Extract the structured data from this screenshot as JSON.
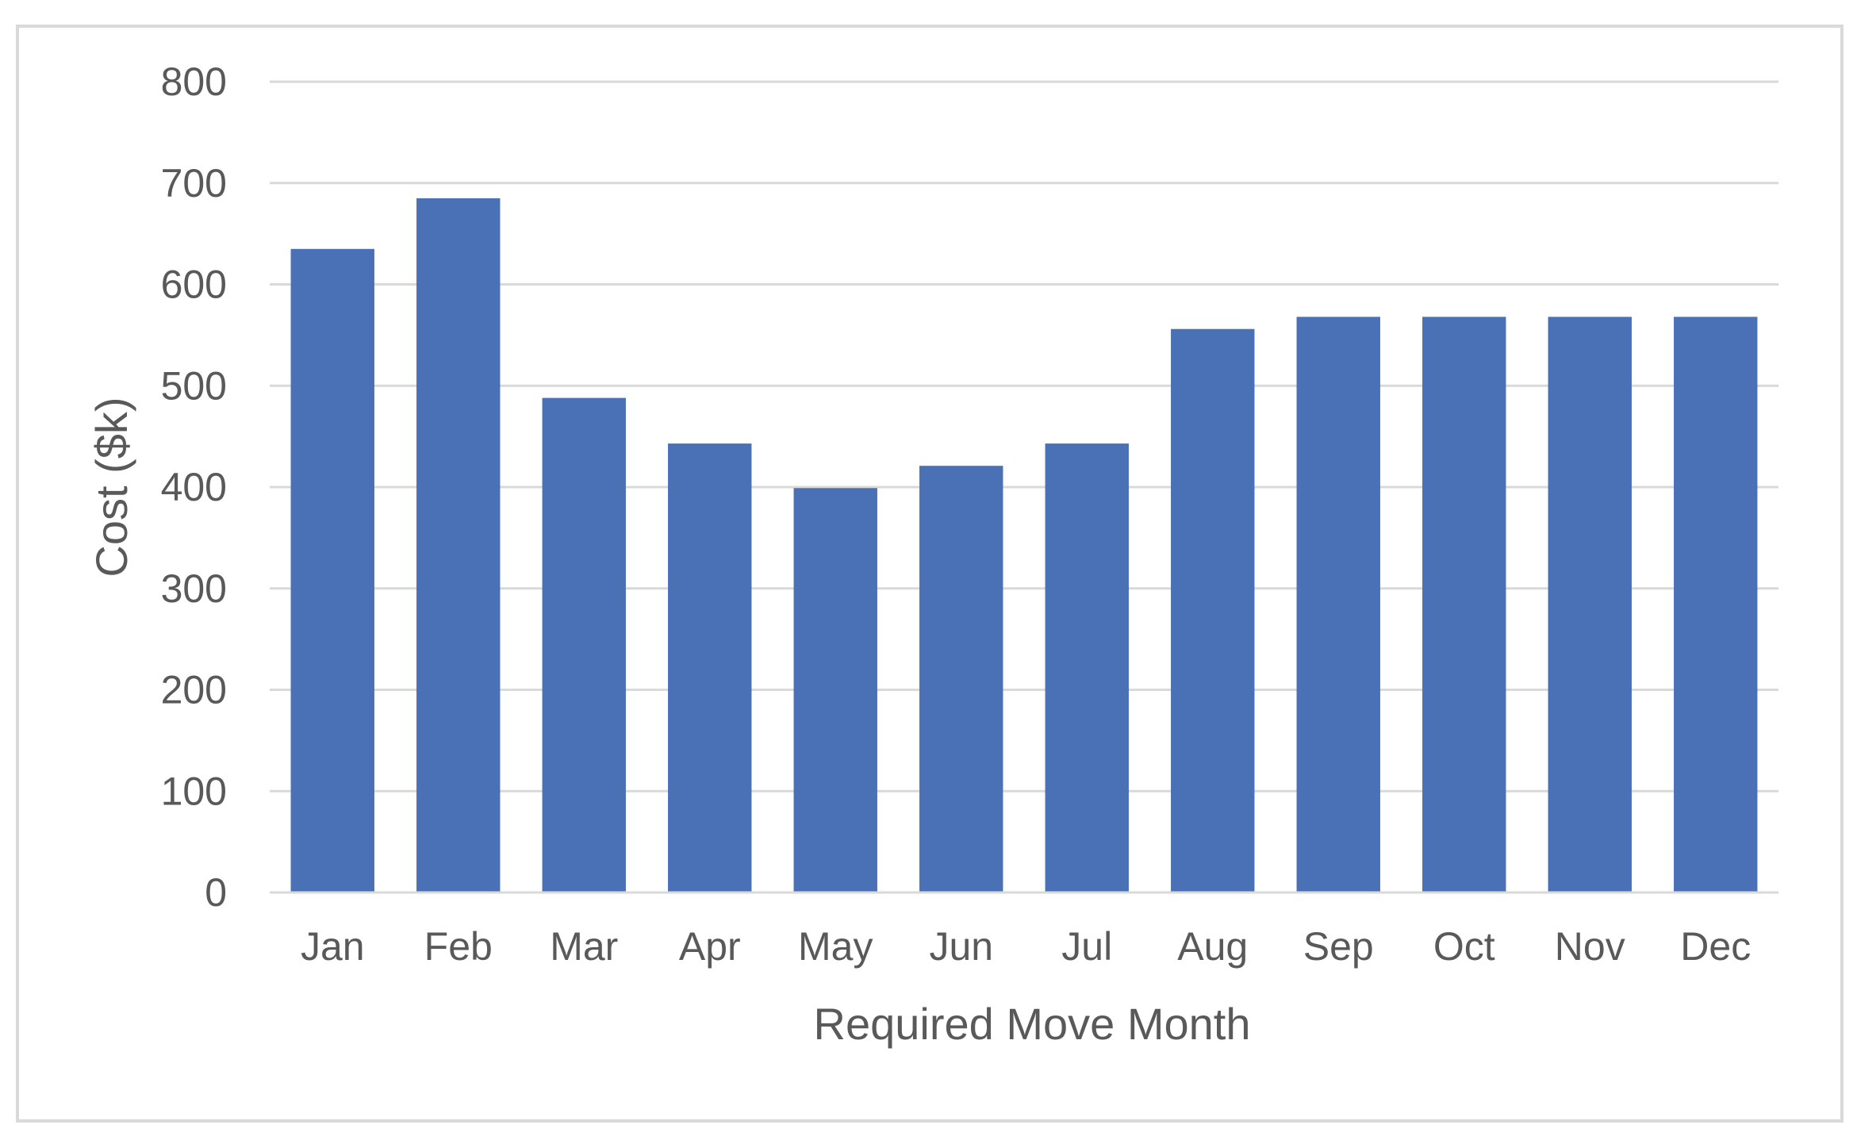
{
  "chart_data": {
    "type": "bar",
    "categories": [
      "Jan",
      "Feb",
      "Mar",
      "Apr",
      "May",
      "Jun",
      "Jul",
      "Aug",
      "Sep",
      "Oct",
      "Nov",
      "Dec"
    ],
    "values": [
      635,
      685,
      488,
      443,
      399,
      421,
      443,
      556,
      568,
      568,
      568,
      568
    ],
    "title": "",
    "xlabel": "Required Move Month",
    "ylabel": "Cost ($k)",
    "ylim": [
      0,
      800
    ],
    "yticks": [
      "0",
      "100",
      "200",
      "300",
      "400",
      "500",
      "600",
      "700",
      "800"
    ],
    "grid": true,
    "legend": "none",
    "bar_color": "#4a70b6"
  }
}
